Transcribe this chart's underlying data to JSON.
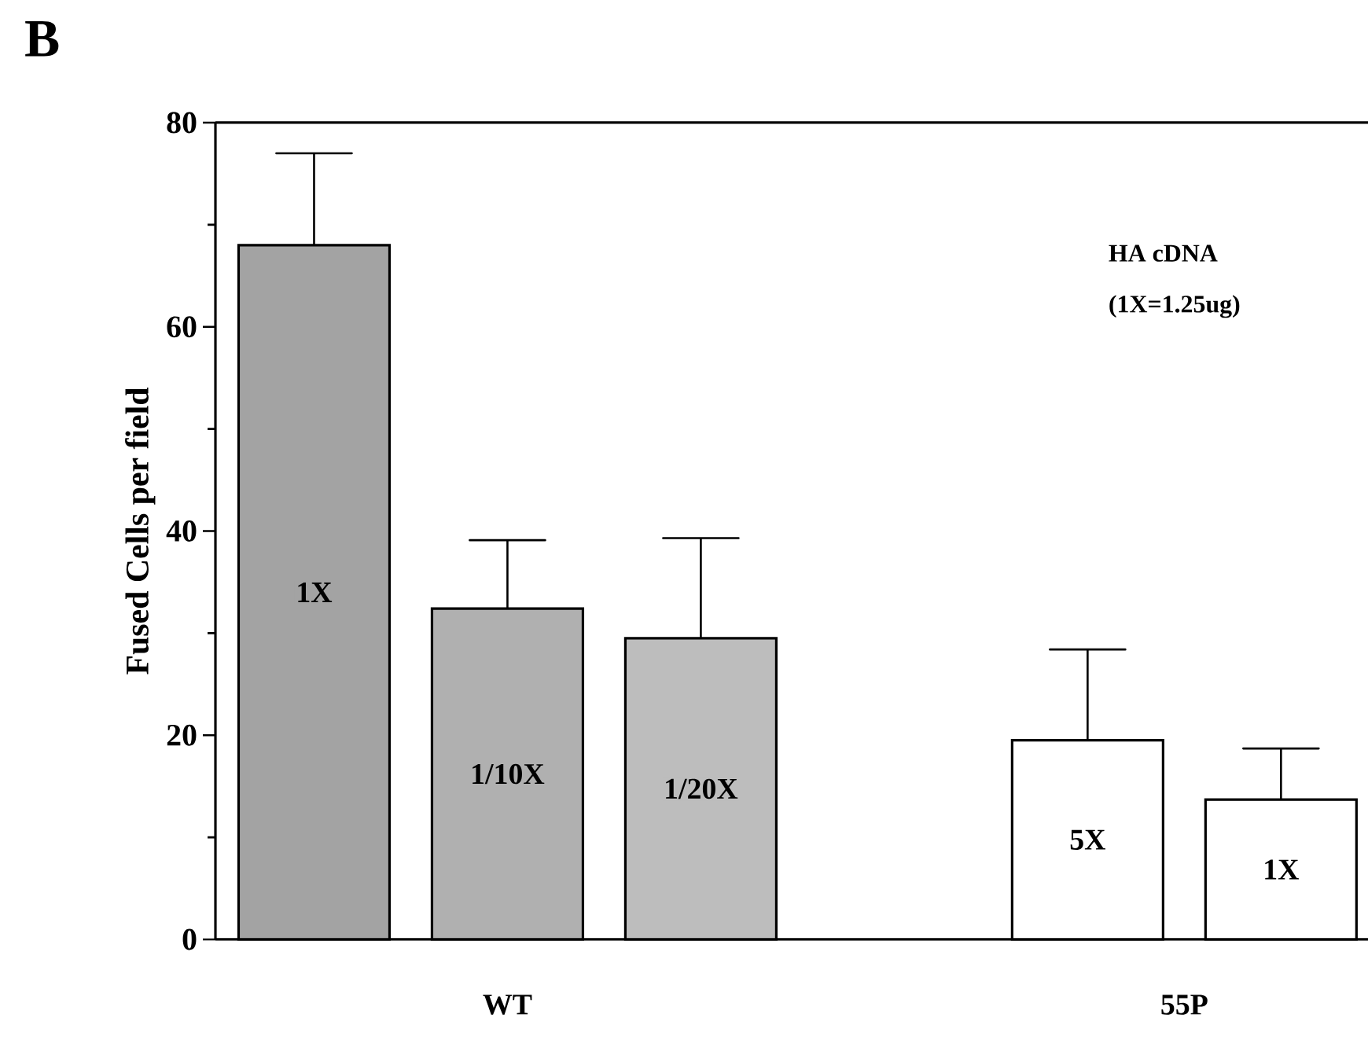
{
  "chart_data": {
    "type": "bar",
    "title": "B",
    "ylabel": "Fused Cells per field",
    "categories": [
      "1X",
      "1/10X",
      "1/20X",
      null,
      "5X",
      "1X"
    ],
    "values": [
      68,
      32.4,
      29.5,
      null,
      19.5,
      13.7
    ],
    "errors": [
      [
        68,
        77
      ],
      [
        32.4,
        39.1
      ],
      [
        29.5,
        39.3
      ],
      null,
      [
        19.5,
        28.4
      ],
      [
        13.7,
        18.7
      ]
    ],
    "colors": [
      "#a3a3a3",
      "#b0b0b0",
      "#bdbdbd",
      "#ffffff",
      "#ffffff",
      "#ffffff"
    ],
    "ylim": [
      0,
      80
    ],
    "yticks": [
      0,
      {
        "value": 10,
        "label": null
      },
      20,
      {
        "value": 30,
        "label": null
      },
      40,
      {
        "value": 50,
        "label": null
      },
      60,
      {
        "value": 70,
        "label": null
      },
      80
    ],
    "annotations": [
      "HA cDNA",
      "(1X=1.25ug)",
      "WT",
      "55P"
    ],
    "grid": false
  }
}
